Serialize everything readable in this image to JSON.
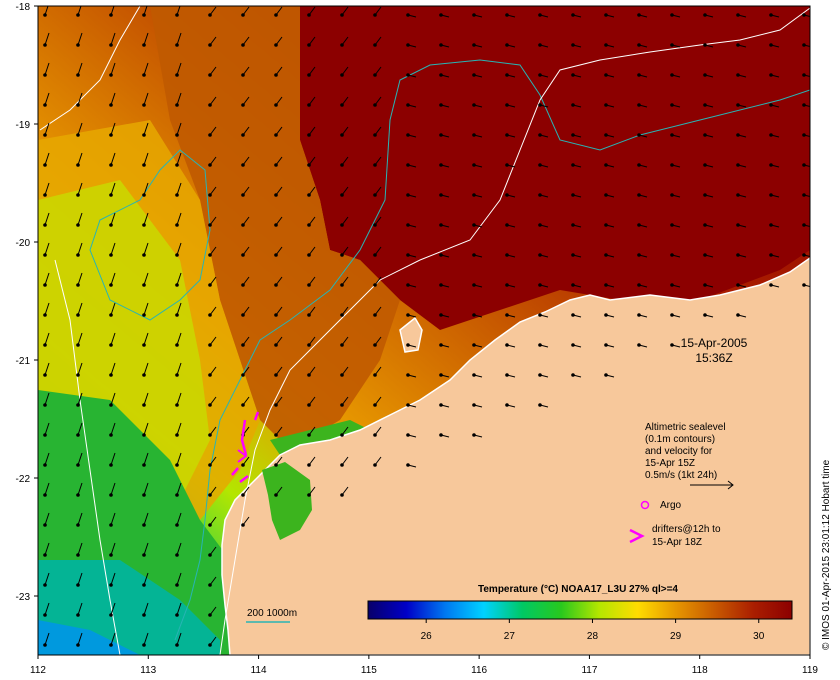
{
  "date_label": {
    "date": "15-Apr-2005",
    "time": "15:36Z"
  },
  "info_lines": [
    "Altimetric sealevel",
    "(0.1m contours)",
    "and velocity for",
    "15-Apr 15Z",
    "0.5m/s (1kt 24h)"
  ],
  "argo_label": "Argo",
  "drifters_lines": [
    "drifters@12h to",
    "15-Apr 18Z"
  ],
  "isobath_label": "200  1000m",
  "colorbar": {
    "title": "Temperature (°C) NOAA17_L3U 27% ql>=4",
    "min": 25.3,
    "max": 30.4,
    "ticks": [
      "26",
      "27",
      "28",
      "29",
      "30"
    ]
  },
  "x_axis_ticks": [
    "112",
    "113",
    "114",
    "115",
    "116",
    "117",
    "118",
    "119"
  ],
  "y_axis_ticks": [
    "-18",
    "-19",
    "-20",
    "-21",
    "-22",
    "-23"
  ],
  "credit": "© IMOS 01-Apr-2015 23:01:12 Hobart time",
  "colors": {
    "land": "#f7c89b",
    "isobath_200": "#28b4b4",
    "isobath_1000": "#ffffff",
    "argo": "#ff00ff",
    "drifter": "#ff00ff",
    "sst_scale": [
      "#08006a",
      "#0000c8",
      "#0078f0",
      "#00d2ff",
      "#00c864",
      "#28c81e",
      "#b4e600",
      "#ffdc00",
      "#e69600",
      "#c85a00",
      "#aa1e00",
      "#8c0000"
    ]
  },
  "icons": {
    "argo": "circle-marker",
    "drifter": "chevron-marker"
  }
}
